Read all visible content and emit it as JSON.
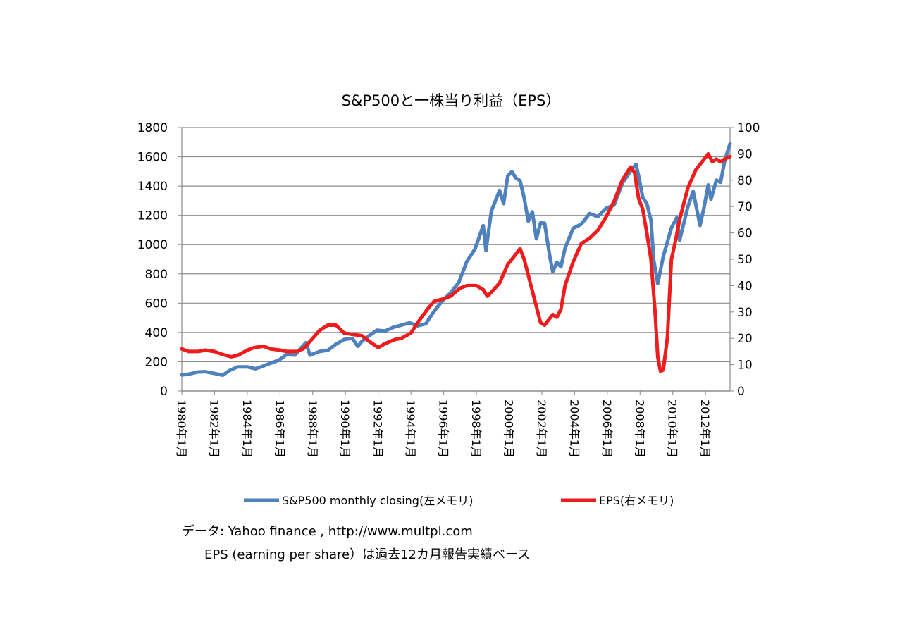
{
  "chart_data": {
    "type": "line",
    "title": "S&P500と一株当り利益（EPS）",
    "x_range": [
      "1980-01",
      "2013-07"
    ],
    "x_tick_labels": [
      "1980年1月",
      "1982年1月",
      "1984年1月",
      "1986年1月",
      "1988年1月",
      "1990年1月",
      "1992年1月",
      "1994年1月",
      "1996年1月",
      "1998年1月",
      "2000年1月",
      "2002年1月",
      "2004年1月",
      "2006年1月",
      "2008年1月",
      "2010年1月",
      "2012年1月"
    ],
    "y_left": {
      "range": [
        0,
        1800
      ],
      "ticks": [
        "0",
        "200",
        "400",
        "600",
        "800",
        "1000",
        "1200",
        "1400",
        "1600",
        "1800"
      ]
    },
    "y_right": {
      "range": [
        0,
        100
      ],
      "ticks": [
        "0",
        "10",
        "20",
        "30",
        "40",
        "50",
        "60",
        "70",
        "80",
        "90",
        "100"
      ]
    },
    "grid": true,
    "legend_position": "bottom",
    "series": [
      {
        "name": "S&P500 monthly closing(左メモリ)",
        "axis": "left",
        "color": "#4f81bd",
        "points": [
          [
            "1980-01",
            110
          ],
          [
            "1980-06",
            115
          ],
          [
            "1981-01",
            130
          ],
          [
            "1981-06",
            132
          ],
          [
            "1982-01",
            120
          ],
          [
            "1982-07",
            108
          ],
          [
            "1982-12",
            140
          ],
          [
            "1983-06",
            165
          ],
          [
            "1984-01",
            165
          ],
          [
            "1984-07",
            152
          ],
          [
            "1984-12",
            168
          ],
          [
            "1985-06",
            190
          ],
          [
            "1985-12",
            210
          ],
          [
            "1986-06",
            250
          ],
          [
            "1986-12",
            245
          ],
          [
            "1987-04",
            290
          ],
          [
            "1987-08",
            330
          ],
          [
            "1987-11",
            245
          ],
          [
            "1988-06",
            270
          ],
          [
            "1988-12",
            278
          ],
          [
            "1989-06",
            320
          ],
          [
            "1989-12",
            352
          ],
          [
            "1990-06",
            360
          ],
          [
            "1990-10",
            305
          ],
          [
            "1991-01",
            340
          ],
          [
            "1991-06",
            375
          ],
          [
            "1991-12",
            415
          ],
          [
            "1992-06",
            410
          ],
          [
            "1992-12",
            435
          ],
          [
            "1993-06",
            450
          ],
          [
            "1993-12",
            466
          ],
          [
            "1994-06",
            445
          ],
          [
            "1994-12",
            460
          ],
          [
            "1995-06",
            545
          ],
          [
            "1995-12",
            615
          ],
          [
            "1996-06",
            670
          ],
          [
            "1996-12",
            740
          ],
          [
            "1997-06",
            885
          ],
          [
            "1997-12",
            970
          ],
          [
            "1998-06",
            1130
          ],
          [
            "1998-08",
            960
          ],
          [
            "1998-12",
            1230
          ],
          [
            "1999-06",
            1370
          ],
          [
            "1999-09",
            1280
          ],
          [
            "1999-12",
            1469
          ],
          [
            "2000-03",
            1498
          ],
          [
            "2000-06",
            1455
          ],
          [
            "2000-09",
            1436
          ],
          [
            "2000-12",
            1320
          ],
          [
            "2001-03",
            1160
          ],
          [
            "2001-06",
            1224
          ],
          [
            "2001-09",
            1040
          ],
          [
            "2001-12",
            1148
          ],
          [
            "2002-03",
            1147
          ],
          [
            "2002-07",
            911
          ],
          [
            "2002-09",
            815
          ],
          [
            "2002-12",
            880
          ],
          [
            "2003-03",
            848
          ],
          [
            "2003-06",
            975
          ],
          [
            "2003-12",
            1112
          ],
          [
            "2004-06",
            1140
          ],
          [
            "2004-12",
            1212
          ],
          [
            "2005-06",
            1191
          ],
          [
            "2005-12",
            1248
          ],
          [
            "2006-06",
            1270
          ],
          [
            "2006-12",
            1418
          ],
          [
            "2007-06",
            1503
          ],
          [
            "2007-10",
            1549
          ],
          [
            "2007-12",
            1468
          ],
          [
            "2008-03",
            1322
          ],
          [
            "2008-06",
            1280
          ],
          [
            "2008-09",
            1166
          ],
          [
            "2008-11",
            896
          ],
          [
            "2009-02",
            735
          ],
          [
            "2009-06",
            919
          ],
          [
            "2009-12",
            1115
          ],
          [
            "2010-04",
            1186
          ],
          [
            "2010-06",
            1030
          ],
          [
            "2010-12",
            1257
          ],
          [
            "2011-04",
            1363
          ],
          [
            "2011-09",
            1131
          ],
          [
            "2011-12",
            1257
          ],
          [
            "2012-03",
            1408
          ],
          [
            "2012-05",
            1310
          ],
          [
            "2012-09",
            1440
          ],
          [
            "2012-12",
            1426
          ],
          [
            "2013-03",
            1569
          ],
          [
            "2013-05",
            1630
          ],
          [
            "2013-07",
            1690
          ]
        ]
      },
      {
        "name": "EPS(右メモリ)",
        "axis": "right",
        "color": "#ee1c1c",
        "points": [
          [
            "1980-01",
            16
          ],
          [
            "1980-06",
            15
          ],
          [
            "1981-01",
            15
          ],
          [
            "1981-06",
            15.5
          ],
          [
            "1982-01",
            15
          ],
          [
            "1982-06",
            14
          ],
          [
            "1983-01",
            13
          ],
          [
            "1983-06",
            13.5
          ],
          [
            "1984-01",
            15.5
          ],
          [
            "1984-06",
            16.5
          ],
          [
            "1985-01",
            17
          ],
          [
            "1985-06",
            16
          ],
          [
            "1986-01",
            15.5
          ],
          [
            "1986-06",
            15
          ],
          [
            "1987-01",
            15
          ],
          [
            "1987-06",
            16
          ],
          [
            "1988-01",
            20
          ],
          [
            "1988-06",
            23
          ],
          [
            "1988-12",
            25
          ],
          [
            "1989-06",
            25
          ],
          [
            "1989-12",
            22
          ],
          [
            "1990-06",
            21.5
          ],
          [
            "1991-01",
            21
          ],
          [
            "1991-06",
            19
          ],
          [
            "1992-01",
            16.5
          ],
          [
            "1992-06",
            18
          ],
          [
            "1993-01",
            19.5
          ],
          [
            "1993-06",
            20
          ],
          [
            "1994-01",
            22
          ],
          [
            "1994-06",
            26
          ],
          [
            "1995-01",
            31
          ],
          [
            "1995-06",
            34
          ],
          [
            "1996-01",
            35
          ],
          [
            "1996-06",
            36
          ],
          [
            "1997-01",
            39
          ],
          [
            "1997-06",
            40
          ],
          [
            "1998-01",
            40
          ],
          [
            "1998-06",
            38.5
          ],
          [
            "1998-09",
            36
          ],
          [
            "1998-12",
            37.5
          ],
          [
            "1999-06",
            41
          ],
          [
            "1999-12",
            48
          ],
          [
            "2000-06",
            52
          ],
          [
            "2000-09",
            54
          ],
          [
            "2000-12",
            50
          ],
          [
            "2001-03",
            44
          ],
          [
            "2001-06",
            38
          ],
          [
            "2001-09",
            32
          ],
          [
            "2001-12",
            26
          ],
          [
            "2002-03",
            25
          ],
          [
            "2002-06",
            27
          ],
          [
            "2002-09",
            29
          ],
          [
            "2002-12",
            28
          ],
          [
            "2003-03",
            31
          ],
          [
            "2003-06",
            40
          ],
          [
            "2003-12",
            49
          ],
          [
            "2004-06",
            56
          ],
          [
            "2004-12",
            58
          ],
          [
            "2005-06",
            61
          ],
          [
            "2005-12",
            66
          ],
          [
            "2006-06",
            72
          ],
          [
            "2006-12",
            80
          ],
          [
            "2007-06",
            85
          ],
          [
            "2007-09",
            83
          ],
          [
            "2007-12",
            73
          ],
          [
            "2008-03",
            69
          ],
          [
            "2008-06",
            60
          ],
          [
            "2008-09",
            50
          ],
          [
            "2008-12",
            30
          ],
          [
            "2009-02",
            13
          ],
          [
            "2009-04",
            7.5
          ],
          [
            "2009-06",
            8
          ],
          [
            "2009-09",
            20
          ],
          [
            "2009-12",
            50
          ],
          [
            "2010-03",
            57
          ],
          [
            "2010-06",
            65
          ],
          [
            "2010-12",
            77
          ],
          [
            "2011-06",
            84
          ],
          [
            "2011-12",
            88
          ],
          [
            "2012-03",
            90
          ],
          [
            "2012-06",
            87
          ],
          [
            "2012-09",
            88
          ],
          [
            "2012-12",
            87
          ],
          [
            "2013-03",
            88
          ],
          [
            "2013-07",
            89
          ]
        ]
      }
    ]
  },
  "notes": {
    "line1": "データ: Yahoo finance , http://www.multpl.com",
    "line2": "EPS (earning per share）は過去12カ月報告実績ベース"
  }
}
